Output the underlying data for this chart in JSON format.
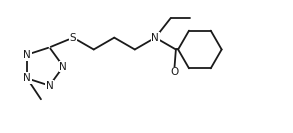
{
  "bg_color": "#ffffff",
  "line_color": "#1a1a1a",
  "line_width": 1.3,
  "font_size": 7.5,
  "fig_width": 2.93,
  "fig_height": 1.33,
  "dpi": 100,
  "xlim": [
    0,
    10.5
  ],
  "ylim": [
    0,
    4.5
  ]
}
